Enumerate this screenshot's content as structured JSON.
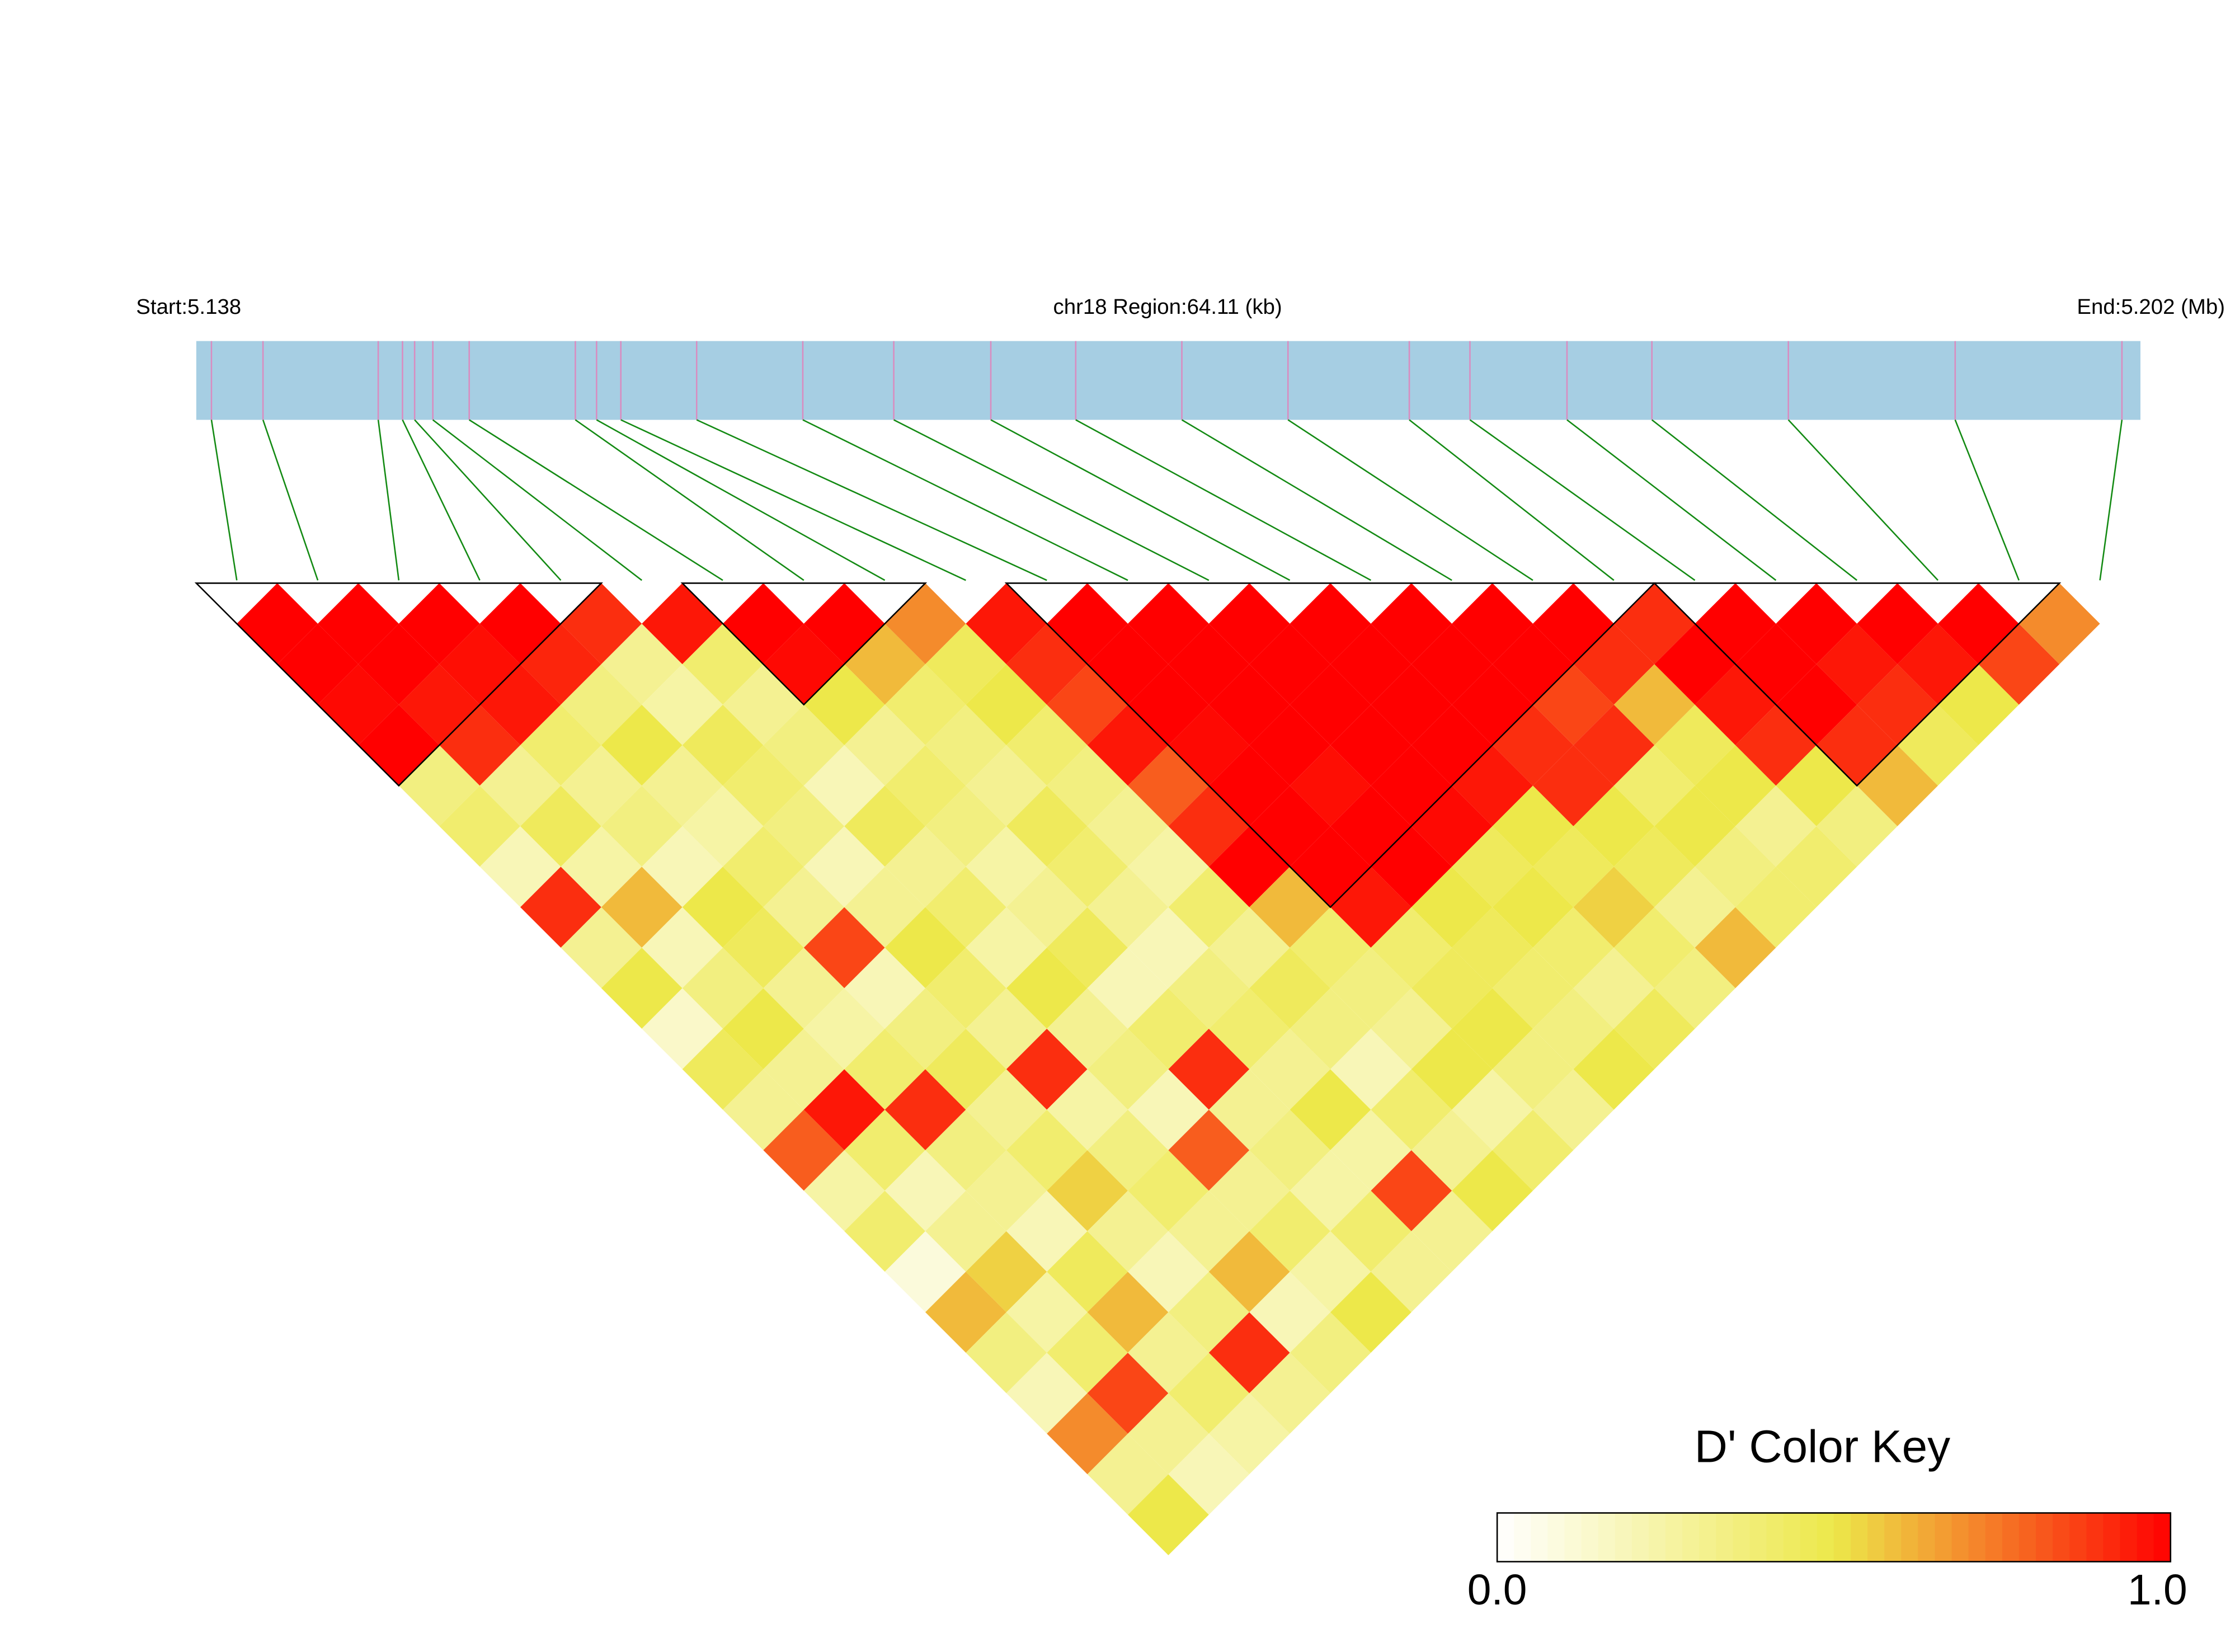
{
  "chart_data": {
    "type": "ld_heatmap",
    "start_label": "Start:5.138",
    "region_label": "chr18 Region:64.11 (kb)",
    "end_label": "End:5.202 (Mb)",
    "xlim": [
      5.138,
      5.20211
    ],
    "positions": [
      5.1385,
      5.1402,
      5.144,
      5.1448,
      5.1452,
      5.1458,
      5.147,
      5.1505,
      5.1512,
      5.152,
      5.1545,
      5.158,
      5.161,
      5.1642,
      5.167,
      5.1705,
      5.174,
      5.178,
      5.18,
      5.1832,
      5.186,
      5.1905,
      5.196,
      5.2015
    ],
    "ld": [
      [
        1,
        1,
        0.98,
        1,
        0.35,
        0.4,
        0.2,
        0.9,
        0.3,
        0.5,
        0.15,
        0.45,
        0.3,
        0.8,
        0.25,
        0.4,
        0.1,
        0.6,
        0.35,
        0.2,
        0.7,
        0.3,
        0.5
      ],
      [
        1,
        1,
        0.95,
        0.9,
        0.3,
        0.45,
        0.25,
        0.6,
        0.2,
        0.35,
        0.5,
        0.3,
        0.95,
        0.4,
        0.2,
        0.3,
        0.55,
        0.25,
        0.4,
        0.85,
        0.3,
        0.2
      ],
      [
        1,
        0.97,
        0.95,
        0.4,
        0.3,
        0.35,
        0.2,
        0.5,
        0.45,
        0.3,
        0.25,
        0.4,
        0.9,
        0.35,
        0.3,
        0.2,
        0.45,
        0.6,
        0.3,
        0.4,
        0.25
      ],
      [
        1,
        0.92,
        0.35,
        0.5,
        0.3,
        0.25,
        0.4,
        0.3,
        0.85,
        0.2,
        0.35,
        0.45,
        0.3,
        0.4,
        0.55,
        0.3,
        0.2,
        0.35,
        0.9,
        0.3
      ],
      [
        0.9,
        0.3,
        0.25,
        0.45,
        0.4,
        0.35,
        0.2,
        0.3,
        0.5,
        0.4,
        0.3,
        0.9,
        0.25,
        0.35,
        0.4,
        0.3,
        0.6,
        0.2,
        0.35
      ],
      [
        0.95,
        0.4,
        0.3,
        0.35,
        0.2,
        0.45,
        0.3,
        0.4,
        0.25,
        0.5,
        0.3,
        0.35,
        0.2,
        0.8,
        0.3,
        0.4,
        0.25,
        0.5
      ],
      [
        1,
        0.98,
        0.5,
        0.3,
        0.4,
        0.35,
        0.25,
        0.3,
        0.45,
        0.2,
        0.4,
        0.9,
        0.3,
        0.35,
        0.25,
        0.4,
        0.3
      ],
      [
        1,
        0.6,
        0.4,
        0.35,
        0.3,
        0.45,
        0.4,
        0.3,
        0.2,
        0.35,
        0.4,
        0.3,
        0.5,
        0.25,
        0.85,
        0.3
      ],
      [
        0.7,
        0.45,
        0.5,
        0.4,
        0.35,
        0.3,
        0.25,
        0.4,
        0.3,
        0.45,
        0.35,
        0.2,
        0.4,
        0.3,
        0.5
      ],
      [
        0.95,
        0.9,
        0.85,
        0.95,
        0.8,
        0.9,
        1,
        0.6,
        0.4,
        0.35,
        0.3,
        0.5,
        0.25,
        0.4
      ],
      [
        1,
        1,
        1,
        0.98,
        1,
        1,
        1,
        0.95,
        0.4,
        0.45,
        0.5,
        0.35,
        0.3
      ],
      [
        1,
        1,
        1,
        1,
        0.97,
        1,
        1,
        0.5,
        0.45,
        0.4,
        0.35,
        0.5
      ],
      [
        1,
        1,
        1,
        1,
        1,
        0.98,
        0.45,
        0.5,
        0.4,
        0.3,
        0.45
      ],
      [
        1,
        1,
        1,
        1,
        0.95,
        0.5,
        0.45,
        0.55,
        0.4,
        0.35
      ],
      [
        1,
        1,
        1,
        0.9,
        0.9,
        0.5,
        0.45,
        0.3,
        0.6
      ],
      [
        1,
        1,
        0.85,
        0.9,
        0.4,
        0.5,
        0.35,
        0.4
      ],
      [
        1,
        0.9,
        0.6,
        0.45,
        0.5,
        0.3,
        0.4
      ],
      [
        0.9,
        1,
        0.95,
        0.9,
        0.5,
        0.35
      ],
      [
        1,
        1,
        1,
        0.9,
        0.6
      ],
      [
        1,
        0.95,
        0.9,
        0.45
      ],
      [
        1,
        0.95,
        0.5
      ],
      [
        1,
        0.85
      ],
      [
        0.7
      ]
    ],
    "blocks": [
      [
        0,
        4
      ],
      [
        6,
        8
      ],
      [
        10,
        17
      ],
      [
        18,
        22
      ]
    ],
    "colorscale": [
      "#ffffff",
      "#ede84a",
      "#ff0000"
    ],
    "color_key": {
      "title": "D' Color Key",
      "ticks": [
        {
          "value": 0,
          "label": "0.0"
        },
        {
          "value": 1,
          "label": "1.0"
        }
      ]
    }
  }
}
